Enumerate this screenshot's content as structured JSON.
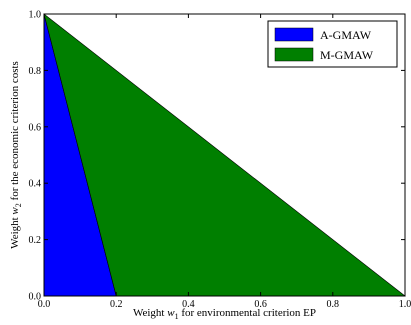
{
  "chart_data": {
    "type": "area",
    "xlabel_prefix": "Weight ",
    "xlabel_sym": "w",
    "xlabel_sub": "1",
    "xlabel_suffix": "  for environmental criterion EP",
    "ylabel_prefix": "Weight ",
    "ylabel_sym": "w",
    "ylabel_sub": "2",
    "ylabel_suffix": "  for the economic criterion costs",
    "xlim": [
      0.0,
      1.0
    ],
    "ylim": [
      0.0,
      1.0
    ],
    "xticks": [
      "0.0",
      "0.2",
      "0.4",
      "0.6",
      "0.8",
      "1.0"
    ],
    "yticks": [
      "0.0",
      "0.2",
      "0.4",
      "0.6",
      "0.8",
      "1.0"
    ],
    "grid": false,
    "legend_position": "top-right",
    "series": [
      {
        "name": "A-GMAW",
        "color": "#0000ff",
        "polygon": [
          [
            0.0,
            0.0
          ],
          [
            0.0,
            1.0
          ],
          [
            0.2,
            0.0
          ]
        ]
      },
      {
        "name": "M-GMAW",
        "color": "#007f00",
        "polygon": [
          [
            0.0,
            1.0
          ],
          [
            0.2,
            0.0
          ],
          [
            1.0,
            0.0
          ]
        ]
      }
    ]
  }
}
